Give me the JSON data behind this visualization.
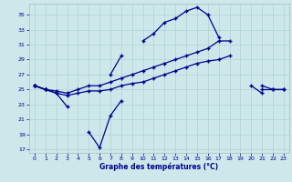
{
  "title": "Graphe des températures (°C)",
  "bg_color": "#cce8ea",
  "line_color": "#00008b",
  "max_temps": [
    25.5,
    25.0,
    null,
    null,
    null,
    null,
    null,
    27.0,
    29.5,
    null,
    31.5,
    32.5,
    34.0,
    34.5,
    35.5,
    36.0,
    35.0,
    32.0,
    null,
    null,
    25.5,
    24.5,
    null,
    null
  ],
  "min_temps": [
    25.5,
    25.0,
    24.5,
    22.7,
    null,
    19.3,
    17.2,
    21.5,
    23.5,
    null,
    null,
    null,
    null,
    null,
    null,
    null,
    null,
    null,
    null,
    null,
    null,
    null,
    null,
    null
  ],
  "upper_mid": [
    25.5,
    25.0,
    24.8,
    24.5,
    25.0,
    25.5,
    25.5,
    26.0,
    26.5,
    27.0,
    27.5,
    28.0,
    28.5,
    29.0,
    29.5,
    30.0,
    30.5,
    31.5,
    31.5,
    null,
    null,
    25.5,
    25.0,
    25.0
  ],
  "lower_mid": [
    25.5,
    25.0,
    24.5,
    24.2,
    24.5,
    24.8,
    24.8,
    25.0,
    25.5,
    25.8,
    26.0,
    26.5,
    27.0,
    27.5,
    28.0,
    28.5,
    28.8,
    29.0,
    29.5,
    null,
    null,
    25.0,
    25.0,
    25.0
  ],
  "yticks": [
    17,
    19,
    21,
    23,
    25,
    27,
    29,
    31,
    33,
    35
  ],
  "xticks": [
    0,
    1,
    2,
    3,
    4,
    5,
    6,
    7,
    8,
    9,
    10,
    11,
    12,
    13,
    14,
    15,
    16,
    17,
    18,
    19,
    20,
    21,
    22,
    23
  ],
  "xlim": [
    -0.5,
    23.5
  ],
  "ylim": [
    16.5,
    36.5
  ]
}
